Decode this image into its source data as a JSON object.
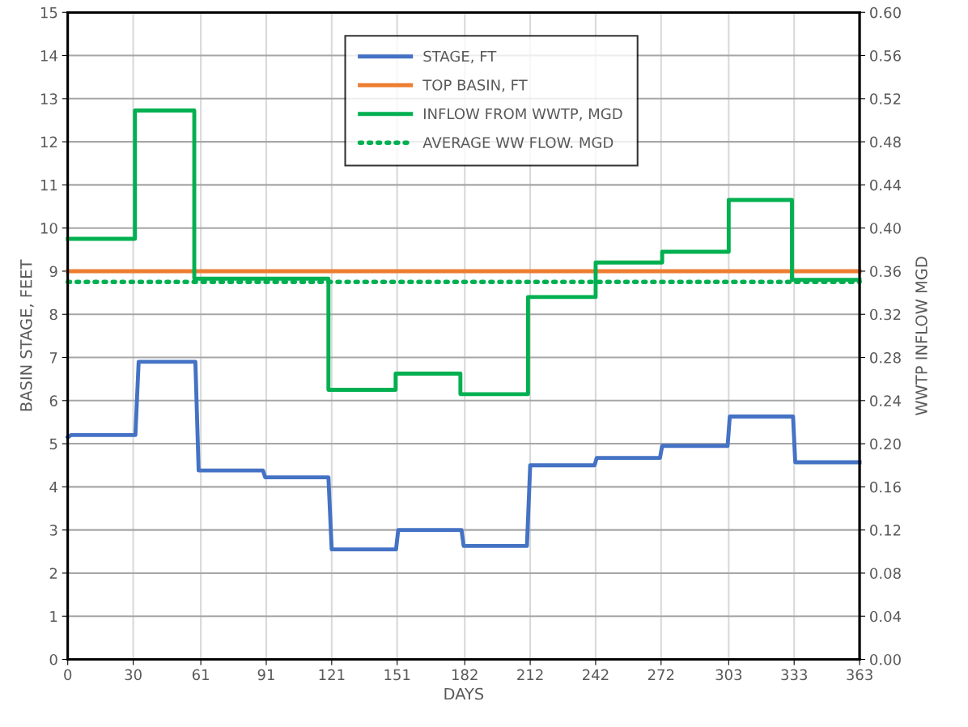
{
  "chart_data": {
    "type": "line",
    "xlabel": "DAYS",
    "ylabel": "BASIN STAGE, FEET",
    "y2label": "WWTP INFLOW MGD",
    "xlim": [
      0,
      363
    ],
    "xticks": [
      0,
      30,
      61,
      91,
      121,
      151,
      182,
      212,
      242,
      272,
      303,
      333,
      363
    ],
    "ylim": [
      0,
      15
    ],
    "yticks": [
      0,
      1,
      2,
      3,
      4,
      5,
      6,
      7,
      8,
      9,
      10,
      11,
      12,
      13,
      14,
      15
    ],
    "y2lim": [
      0,
      0.6
    ],
    "y2ticks": [
      {
        "value": 0,
        "label": "0.00"
      },
      {
        "value": 0.04,
        "label": "0.04"
      },
      {
        "value": 0.08,
        "label": "0.08"
      },
      {
        "value": 0.12,
        "label": "0.12"
      },
      {
        "value": 0.16,
        "label": "0.16"
      },
      {
        "value": 0.2,
        "label": "0.20"
      },
      {
        "value": 0.24,
        "label": "0.24"
      },
      {
        "value": 0.28,
        "label": "0.28"
      },
      {
        "value": 0.32,
        "label": "0.32"
      },
      {
        "value": 0.36,
        "label": "0.36"
      },
      {
        "value": 0.4,
        "label": "0.40"
      },
      {
        "value": 0.44,
        "label": "0.44"
      },
      {
        "value": 0.48,
        "label": "0.48"
      },
      {
        "value": 0.52,
        "label": "0.52"
      },
      {
        "value": 0.56,
        "label": "0.56"
      },
      {
        "value": 0.6,
        "label": "0.60"
      }
    ],
    "grid": true,
    "legend": "top",
    "marker": "none",
    "series": [
      {
        "name": "STAGE, FT",
        "color": "#4472c4",
        "x": [
          0,
          1.5,
          31,
          32.5,
          58.5,
          60,
          89.5,
          90.5,
          119.5,
          121,
          150.5,
          151.5,
          180.5,
          181.5,
          210.5,
          212,
          241.5,
          242.5,
          271.5,
          272.5,
          302.5,
          303.5,
          332.5,
          333.5,
          363
        ],
        "values": [
          5.15,
          5.2,
          5.2,
          6.9,
          6.9,
          4.38,
          4.38,
          4.22,
          4.22,
          2.55,
          2.55,
          3.0,
          3.0,
          2.63,
          2.63,
          4.5,
          4.5,
          4.67,
          4.67,
          4.95,
          4.95,
          5.63,
          5.63,
          4.57,
          4.57
        ]
      },
      {
        "name": "TOP BASIN, FT",
        "color": "#ed7d31",
        "x": [
          0,
          363
        ],
        "values": [
          9,
          9
        ]
      },
      {
        "name": "INFLOW FROM WWTP, MGD",
        "color": "#00b050",
        "type": "step",
        "axis": "y2",
        "x": [
          0,
          30.8,
          58,
          119.5,
          150.3,
          180,
          211,
          242,
          272.5,
          303,
          332,
          363
        ],
        "values": [
          0.39,
          0.509,
          0.353,
          0.25,
          0.265,
          0.246,
          0.336,
          0.368,
          0.378,
          0.426,
          0.352,
          0.352
        ]
      },
      {
        "name": "AVERAGE WW FLOW. MGD",
        "color": "#00b050",
        "axis": "y2",
        "line_style": "dotted",
        "x": [
          0,
          363
        ],
        "values": [
          0.35,
          0.35
        ]
      }
    ]
  }
}
